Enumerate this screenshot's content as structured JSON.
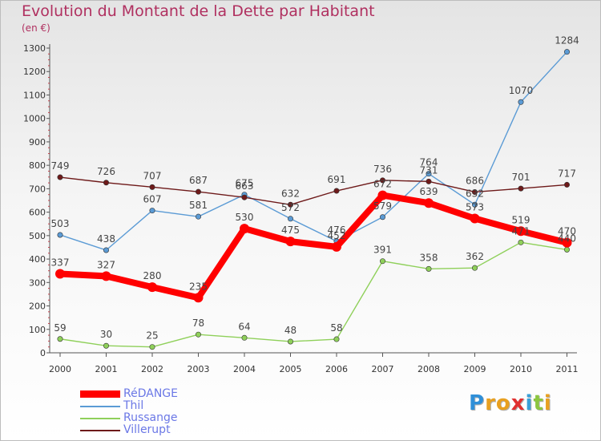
{
  "chart_data": {
    "type": "line",
    "title": "Evolution du Montant de la Dette par Habitant",
    "subtitle": "(en €)",
    "x": [
      "2000",
      "2001",
      "2002",
      "2003",
      "2004",
      "2005",
      "2006",
      "2007",
      "2008",
      "2009",
      "2010",
      "2011"
    ],
    "ylim": [
      0,
      1300
    ],
    "yticks": [
      0,
      100,
      200,
      300,
      400,
      500,
      600,
      700,
      800,
      900,
      1000,
      1100,
      1200,
      1300
    ],
    "grid": false,
    "legend_position": "bottom-left",
    "series": [
      {
        "name": "RéDANGE",
        "color": "#ff0000",
        "values": [
          337,
          327,
          280,
          235,
          530,
          475,
          452,
          672,
          639,
          573,
          519,
          470
        ]
      },
      {
        "name": "Thil",
        "color": "#5b9bd5",
        "values": [
          503,
          438,
          607,
          581,
          675,
          572,
          476,
          579,
          764,
          632,
          1070,
          1284
        ]
      },
      {
        "name": "Russange",
        "color": "#8fd05a",
        "values": [
          59,
          30,
          25,
          78,
          64,
          48,
          58,
          391,
          358,
          362,
          471,
          440
        ]
      },
      {
        "name": "Villerupt",
        "color": "#6e1a1a",
        "values": [
          749,
          726,
          707,
          687,
          663,
          632,
          691,
          736,
          731,
          686,
          701,
          717
        ]
      }
    ]
  },
  "logo": {
    "letters": [
      {
        "ch": "P",
        "color": "#2f8fd8"
      },
      {
        "ch": "r",
        "color": "#e8a020"
      },
      {
        "ch": "o",
        "color": "#e8a020"
      },
      {
        "ch": "x",
        "color": "#e03030"
      },
      {
        "ch": "i",
        "color": "#3aa0d8"
      },
      {
        "ch": "t",
        "color": "#8cc63f"
      },
      {
        "ch": "i",
        "color": "#e8a020"
      }
    ]
  }
}
